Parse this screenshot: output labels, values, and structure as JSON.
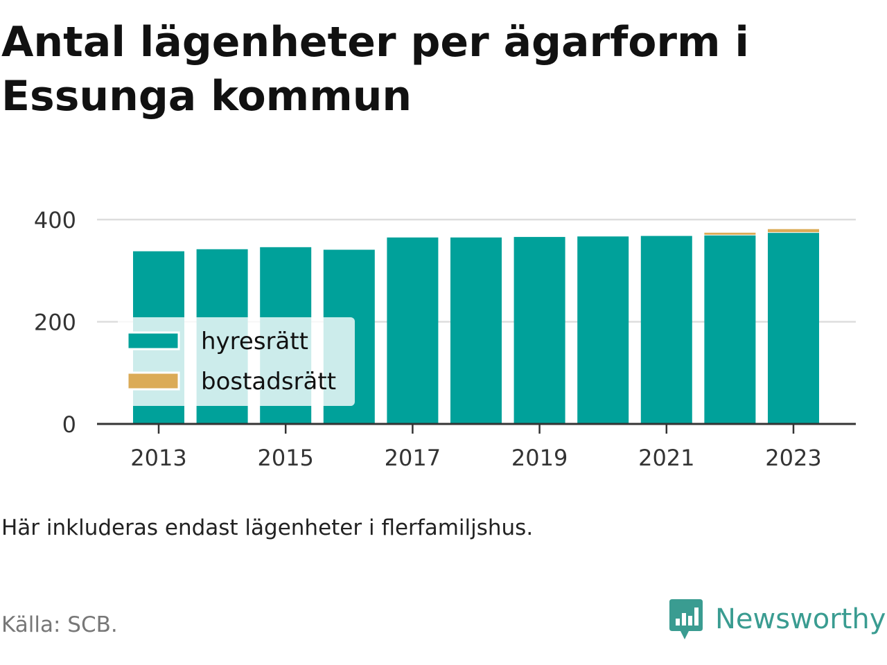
{
  "title": "Antal lägenheter per ägarform i Essunga kommun",
  "note": "Här inkluderas endast lägenheter i flerfamiljshus.",
  "source": "Källa: SCB.",
  "brand": {
    "name": "Newsworthy",
    "icon": "newsworthy-logo-icon",
    "color": "#3a9c91"
  },
  "chart_data": {
    "type": "bar",
    "stacked": true,
    "title": "Antal lägenheter per ägarform i Essunga kommun",
    "xlabel": "",
    "ylabel": "",
    "categories": [
      "2013",
      "2014",
      "2015",
      "2016",
      "2017",
      "2018",
      "2019",
      "2020",
      "2021",
      "2022",
      "2023"
    ],
    "x_tick_labels": [
      "2013",
      "2015",
      "2017",
      "2019",
      "2021",
      "2023"
    ],
    "y_ticks": [
      "0",
      "200",
      "400"
    ],
    "ylim": [
      0,
      420
    ],
    "grid": true,
    "legend_position": "bottom-left",
    "series": [
      {
        "name": "hyresrätt",
        "color": "#00a19a",
        "values": [
          338,
          342,
          346,
          341,
          365,
          365,
          366,
          367,
          368,
          369,
          374
        ]
      },
      {
        "name": "bostadsrätt",
        "color": "#dbab57",
        "values": [
          0,
          0,
          0,
          0,
          0,
          0,
          0,
          0,
          0,
          4,
          6
        ]
      }
    ]
  }
}
